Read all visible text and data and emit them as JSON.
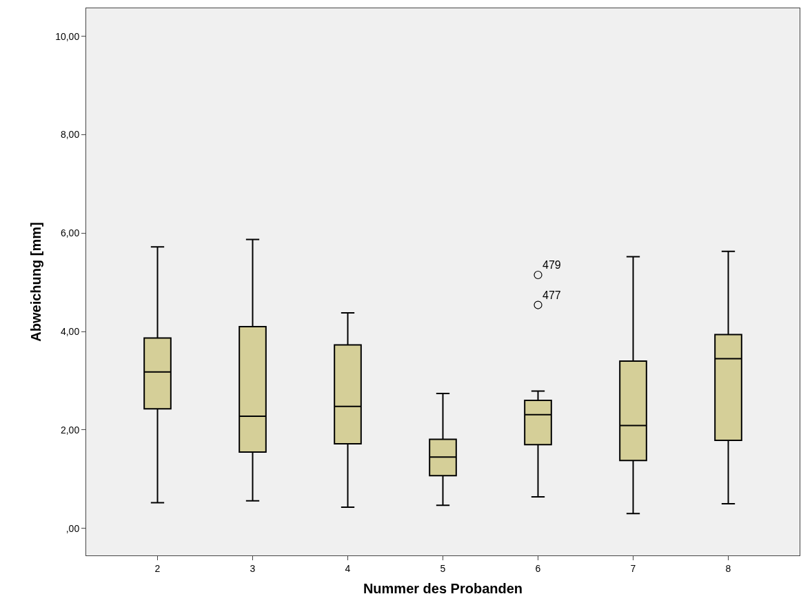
{
  "chart_data": {
    "type": "box",
    "xlabel": "Nummer des Probanden",
    "ylabel": "Abweichung [mm]",
    "categories": [
      "2",
      "3",
      "4",
      "5",
      "6",
      "7",
      "8"
    ],
    "boxes": [
      {
        "low": 0.52,
        "q1": 2.43,
        "median": 3.18,
        "q3": 3.87,
        "high": 5.72
      },
      {
        "low": 0.56,
        "q1": 1.55,
        "median": 2.28,
        "q3": 4.1,
        "high": 5.87
      },
      {
        "low": 0.43,
        "q1": 1.72,
        "median": 2.48,
        "q3": 3.73,
        "high": 4.38
      },
      {
        "low": 0.47,
        "q1": 1.07,
        "median": 1.45,
        "q3": 1.81,
        "high": 2.74
      },
      {
        "low": 0.64,
        "q1": 1.7,
        "median": 2.31,
        "q3": 2.6,
        "high": 2.79,
        "outliers": [
          5.15,
          4.54
        ]
      },
      {
        "low": 0.3,
        "q1": 1.38,
        "median": 2.09,
        "q3": 3.4,
        "high": 5.52
      },
      {
        "low": 0.5,
        "q1": 1.79,
        "median": 3.45,
        "q3": 3.94,
        "high": 5.63
      }
    ],
    "color": "#d5cf98",
    "ylim": [
      -0.55,
      10.57
    ],
    "yticks": [
      {
        "value": 0,
        "label": ",00"
      },
      {
        "value": 2,
        "label": "2,00"
      },
      {
        "value": 4,
        "label": "4,00"
      },
      {
        "value": 6,
        "label": "6,00"
      },
      {
        "value": 8,
        "label": "8,00"
      },
      {
        "value": 10,
        "label": "10,00"
      }
    ],
    "annotations": [
      "479",
      "477"
    ],
    "grid": false,
    "marker": "circle"
  }
}
